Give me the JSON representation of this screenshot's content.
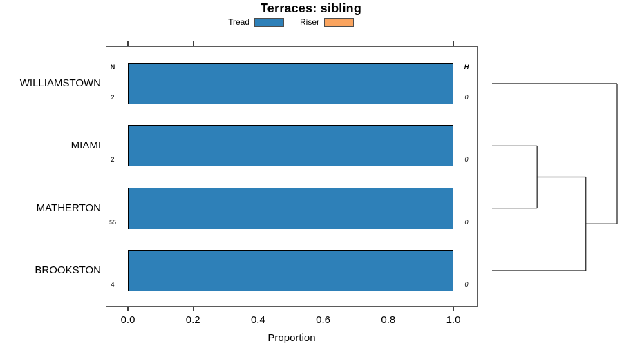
{
  "chart_data": {
    "type": "bar",
    "orientation": "horizontal",
    "title": "Terraces: sibling",
    "categories": [
      "WILLIAMSTOWN",
      "MIAMI",
      "MATHERTON",
      "BROOKSTON"
    ],
    "series": [
      {
        "name": "Tread",
        "color": "#2E80B8",
        "values": [
          1.0,
          1.0,
          1.0,
          1.0
        ]
      },
      {
        "name": "Riser",
        "color": "#FAA45F",
        "values": [
          0.0,
          0.0,
          0.0,
          0.0
        ]
      }
    ],
    "column_headers": {
      "n": "N",
      "h": "H"
    },
    "n_values": [
      "2",
      "2",
      "55",
      "4"
    ],
    "h_values": [
      "0",
      "0",
      "0",
      "0"
    ],
    "xlabel": "Proportion",
    "xlim": [
      0,
      1
    ],
    "xticks": [
      0.0,
      0.2,
      0.4,
      0.6,
      0.8,
      1.0
    ],
    "xtick_labels": [
      "0.0",
      "0.2",
      "0.4",
      "0.6",
      "0.8",
      "1.0"
    ],
    "grid": false,
    "legend_position": "top",
    "dendrogram": {
      "merges": [
        {
          "children": [
            1,
            2
          ],
          "x": 0.36
        },
        {
          "children": [
            "m0",
            3
          ],
          "x": 0.75
        },
        {
          "children": [
            0,
            "m1"
          ],
          "x": 1.0
        }
      ]
    }
  },
  "colors": {
    "bar_border": "#000000",
    "box_border": "#5b5b5b",
    "dendrogram_line": "#1c1c1c",
    "tick": "#3f3f3f"
  }
}
